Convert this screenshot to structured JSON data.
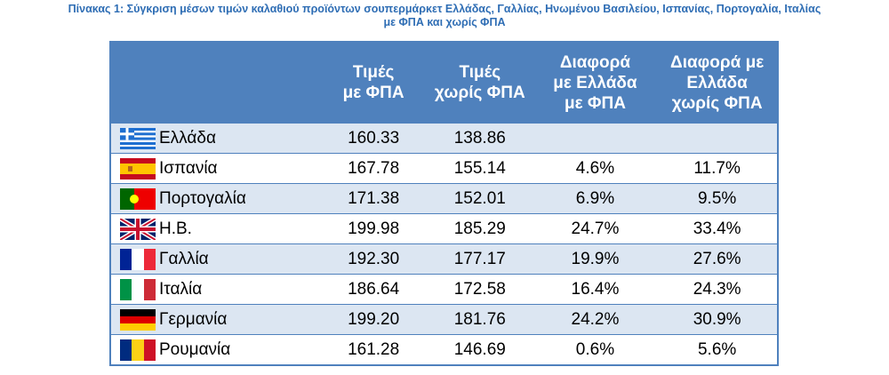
{
  "title": [
    "Πίνακας 1: Σύγκριση μέσων τιμών καλαθιού προϊόντων σουπερμάρκετ Ελλάδας, Γαλλίας, Ηνωμένου Βασιλείου, Ισπανίας, Πορτογαλία, Ιταλίας",
    "με ΦΠΑ και χωρίς ΦΠΑ"
  ],
  "table": {
    "header": [
      [
        "Τιμές",
        "με ΦΠΑ"
      ],
      [
        "Τιμές",
        "χωρίς ΦΠΑ"
      ],
      [
        "Διαφορά",
        "με Ελλάδα",
        "με ΦΠΑ"
      ],
      [
        "Διαφορά με",
        "Ελλάδα",
        "χωρίς ΦΠΑ"
      ]
    ],
    "rows": [
      [
        "Ελλάδα",
        "160.33",
        "138.86"
      ],
      [
        "Ισπανία",
        "167.78",
        "155.14",
        "4.6%",
        "11.7%"
      ],
      [
        "Πορτογαλία",
        "171.38",
        "152.01",
        "6.9%",
        "9.5%"
      ],
      [
        "Η.Β.",
        "199.98",
        "185.29",
        "24.7%",
        "33.4%"
      ],
      [
        "Γαλλία",
        "192.30",
        "177.17",
        "19.9%",
        "27.6%"
      ],
      [
        "Ιταλία",
        "186.64",
        "172.58",
        "16.4%",
        "24.3%"
      ],
      [
        "Γερμανία",
        "199.20",
        "181.76",
        "24.2%",
        "30.9%"
      ],
      [
        "Ρουμανία",
        "161.28",
        "146.69",
        "0.6%",
        "5.6%"
      ]
    ]
  }
}
